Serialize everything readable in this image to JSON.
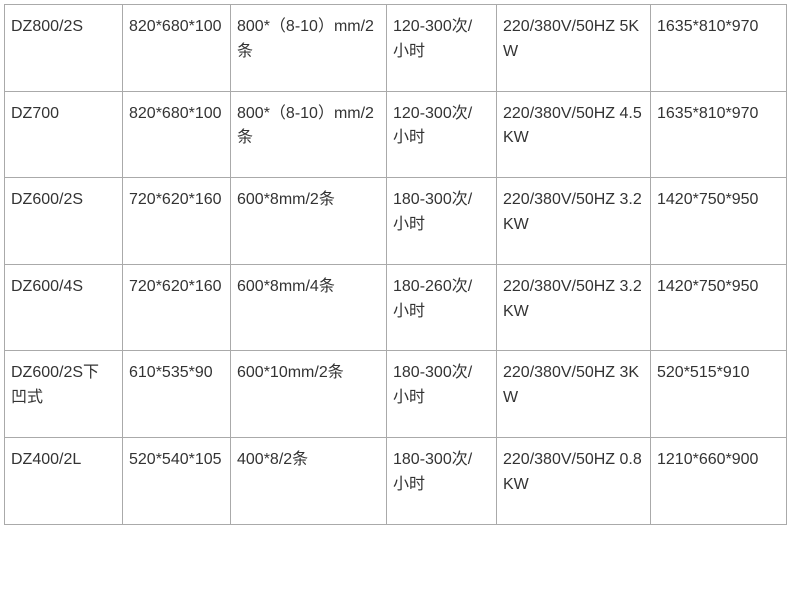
{
  "table": {
    "columns": [
      0,
      1,
      2,
      3,
      4,
      5
    ],
    "rows": [
      {
        "c0": "DZ800/2S",
        "c1": "820*680*100",
        "c2": "800*（8-10）mm/2条",
        "c3": "120-300次/小时",
        "c4": "220/380V/50HZ  5KW",
        "c5": "1635*810*970"
      },
      {
        "c0": "DZ700",
        "c1": "820*680*100",
        "c2": "800*（8-10）mm/2条",
        "c3": "120-300次/小时",
        "c4": "220/380V/50HZ  4.5KW",
        "c5": "1635*810*970"
      },
      {
        "c0": "DZ600/2S",
        "c1": "720*620*160",
        "c2": "600*8mm/2条",
        "c3": "180-300次/小时",
        "c4": "220/380V/50HZ  3.2KW",
        "c5": "1420*750*950"
      },
      {
        "c0": "DZ600/4S",
        "c1": "720*620*160",
        "c2": "600*8mm/4条",
        "c3": "180-260次/小时",
        "c4": "220/380V/50HZ  3.2KW",
        "c5": "1420*750*950"
      },
      {
        "c0": "DZ600/2S下凹式",
        "c1": "610*535*90",
        "c2": "600*10mm/2条",
        "c3": "180-300次/小时",
        "c4": "220/380V/50HZ  3KW",
        "c5": "520*515*910"
      },
      {
        "c0": "DZ400/2L",
        "c1": "520*540*105",
        "c2": "400*8/2条",
        "c3": "180-300次/小时",
        "c4": "220/380V/50HZ  0.8KW",
        "c5": "1210*660*900"
      }
    ]
  }
}
